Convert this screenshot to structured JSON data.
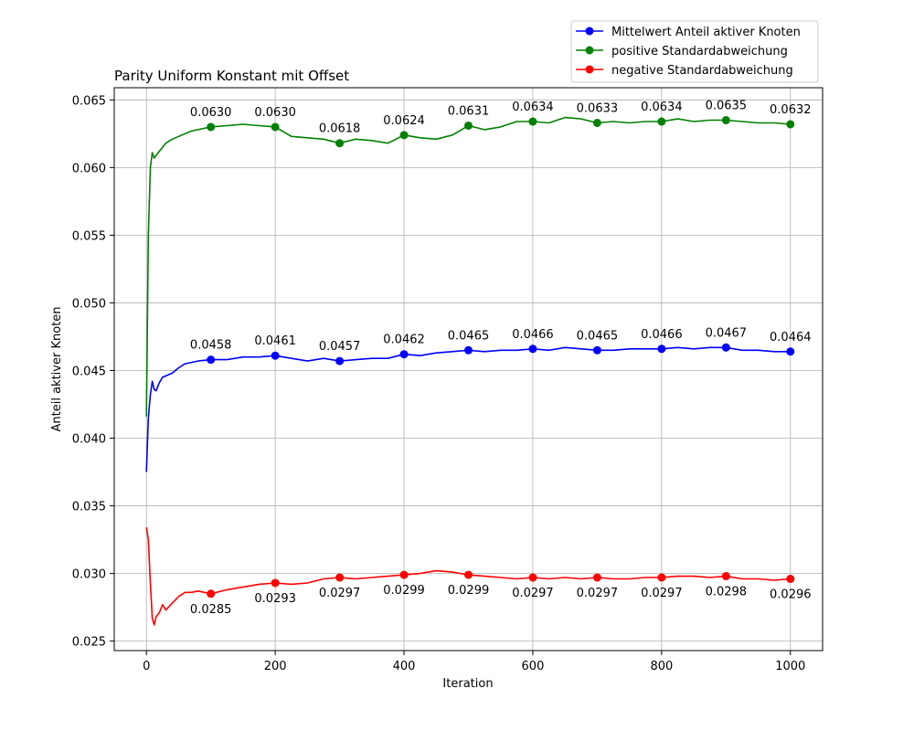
{
  "chart_data": {
    "type": "line",
    "title": "Parity Uniform Konstant mit Offset",
    "xlabel": "Iteration",
    "ylabel": "Anteil aktiver Knoten",
    "xlim": [
      -50,
      1050
    ],
    "ylim": [
      0.0243,
      0.0659
    ],
    "xticks": [
      0,
      200,
      400,
      600,
      800,
      1000
    ],
    "xtick_labels": [
      "0",
      "200",
      "400",
      "600",
      "800",
      "1000"
    ],
    "yticks": [
      0.025,
      0.03,
      0.035,
      0.04,
      0.045,
      0.05,
      0.055,
      0.06,
      0.065
    ],
    "ytick_labels": [
      "0.025",
      "0.030",
      "0.035",
      "0.040",
      "0.045",
      "0.050",
      "0.055",
      "0.060",
      "0.065"
    ],
    "grid": true,
    "legend_position": "top-right, outside plot",
    "series": [
      {
        "name": "Mittelwert Anteil aktiver Knoten",
        "color": "#0000ff",
        "x": [
          0,
          3,
          6,
          9,
          12,
          15,
          20,
          25,
          30,
          40,
          50,
          60,
          70,
          80,
          100,
          125,
          150,
          175,
          200,
          225,
          250,
          275,
          300,
          325,
          350,
          375,
          400,
          425,
          450,
          475,
          500,
          525,
          550,
          575,
          600,
          625,
          650,
          675,
          700,
          725,
          750,
          775,
          800,
          825,
          850,
          875,
          900,
          925,
          950,
          975,
          1000
        ],
        "values": [
          0.0375,
          0.0415,
          0.0432,
          0.0442,
          0.0436,
          0.0435,
          0.0441,
          0.0445,
          0.0446,
          0.0448,
          0.0452,
          0.0455,
          0.0456,
          0.0457,
          0.0458,
          0.0458,
          0.046,
          0.046,
          0.0461,
          0.0459,
          0.0457,
          0.0459,
          0.0457,
          0.0458,
          0.0459,
          0.0459,
          0.0462,
          0.0461,
          0.0463,
          0.0464,
          0.0465,
          0.0464,
          0.0465,
          0.0465,
          0.0466,
          0.0465,
          0.0467,
          0.0466,
          0.0465,
          0.0465,
          0.0466,
          0.0466,
          0.0466,
          0.0467,
          0.0466,
          0.0467,
          0.0467,
          0.0465,
          0.0465,
          0.0464,
          0.0464
        ],
        "markers_x": [
          100,
          200,
          300,
          400,
          500,
          600,
          700,
          800,
          900,
          1000
        ],
        "markers_y": [
          0.0458,
          0.0461,
          0.0457,
          0.0462,
          0.0465,
          0.0466,
          0.0465,
          0.0466,
          0.0467,
          0.0464
        ],
        "labels": [
          "0.0458",
          "0.0461",
          "0.0457",
          "0.0462",
          "0.0465",
          "0.0466",
          "0.0465",
          "0.0466",
          "0.0467",
          "0.0464"
        ],
        "label_pos": "above"
      },
      {
        "name": "positive Standardabweichung",
        "color": "#008000",
        "x": [
          0,
          3,
          6,
          9,
          12,
          15,
          20,
          25,
          30,
          40,
          50,
          60,
          70,
          80,
          100,
          125,
          150,
          175,
          200,
          225,
          250,
          275,
          300,
          325,
          350,
          375,
          400,
          425,
          450,
          475,
          500,
          525,
          550,
          575,
          600,
          625,
          650,
          675,
          700,
          725,
          750,
          775,
          800,
          825,
          850,
          875,
          900,
          925,
          950,
          975,
          1000
        ],
        "values": [
          0.0416,
          0.055,
          0.06,
          0.0611,
          0.0607,
          0.0609,
          0.0612,
          0.0615,
          0.0618,
          0.0621,
          0.0623,
          0.0625,
          0.0627,
          0.0628,
          0.063,
          0.0631,
          0.0632,
          0.0631,
          0.063,
          0.0623,
          0.0622,
          0.0621,
          0.0618,
          0.0621,
          0.062,
          0.0618,
          0.0624,
          0.0622,
          0.0621,
          0.0624,
          0.0631,
          0.0628,
          0.063,
          0.0634,
          0.0634,
          0.0633,
          0.0637,
          0.0636,
          0.0633,
          0.0634,
          0.0633,
          0.0634,
          0.0634,
          0.0636,
          0.0634,
          0.0635,
          0.0635,
          0.0634,
          0.0633,
          0.0633,
          0.0632
        ],
        "markers_x": [
          100,
          200,
          300,
          400,
          500,
          600,
          700,
          800,
          900,
          1000
        ],
        "markers_y": [
          0.063,
          0.063,
          0.0618,
          0.0624,
          0.0631,
          0.0634,
          0.0633,
          0.0634,
          0.0635,
          0.0632
        ],
        "labels": [
          "0.0630",
          "0.0630",
          "0.0618",
          "0.0624",
          "0.0631",
          "0.0634",
          "0.0633",
          "0.0634",
          "0.0635",
          "0.0632"
        ],
        "label_pos": "above"
      },
      {
        "name": "negative Standardabweichung",
        "color": "#ff0000",
        "x": [
          0,
          3,
          6,
          9,
          12,
          15,
          20,
          25,
          30,
          40,
          50,
          60,
          70,
          80,
          100,
          125,
          150,
          175,
          200,
          225,
          250,
          275,
          300,
          325,
          350,
          375,
          400,
          425,
          450,
          475,
          500,
          525,
          550,
          575,
          600,
          625,
          650,
          675,
          700,
          725,
          750,
          775,
          800,
          825,
          850,
          875,
          900,
          925,
          950,
          975,
          1000
        ],
        "values": [
          0.0334,
          0.0325,
          0.0293,
          0.0267,
          0.0262,
          0.0268,
          0.0271,
          0.0277,
          0.0273,
          0.0278,
          0.0283,
          0.0286,
          0.0286,
          0.0287,
          0.0285,
          0.0288,
          0.029,
          0.0292,
          0.0293,
          0.0292,
          0.0293,
          0.0296,
          0.0297,
          0.0296,
          0.0297,
          0.0298,
          0.0299,
          0.03,
          0.0302,
          0.0301,
          0.0299,
          0.0298,
          0.0297,
          0.0296,
          0.0297,
          0.0296,
          0.0297,
          0.0296,
          0.0297,
          0.0296,
          0.0296,
          0.0297,
          0.0297,
          0.0298,
          0.0298,
          0.0297,
          0.0298,
          0.0296,
          0.0296,
          0.0295,
          0.0296
        ],
        "markers_x": [
          100,
          200,
          300,
          400,
          500,
          600,
          700,
          800,
          900,
          1000
        ],
        "markers_y": [
          0.0285,
          0.0293,
          0.0297,
          0.0299,
          0.0299,
          0.0297,
          0.0297,
          0.0297,
          0.0298,
          0.0296
        ],
        "labels": [
          "0.0285",
          "0.0293",
          "0.0297",
          "0.0299",
          "0.0299",
          "0.0297",
          "0.0297",
          "0.0297",
          "0.0298",
          "0.0296"
        ],
        "label_pos": "below"
      }
    ]
  }
}
